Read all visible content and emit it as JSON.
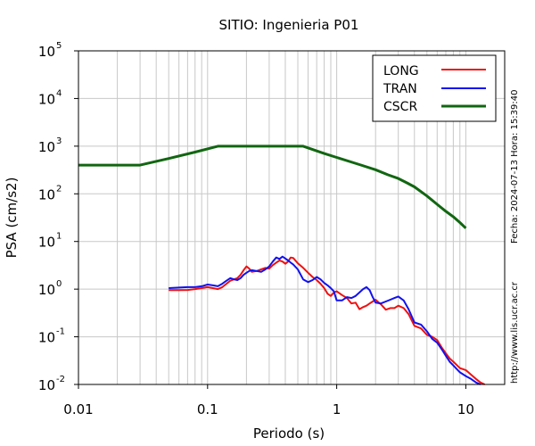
{
  "chart_data": {
    "type": "line",
    "title": "SITIO: Ingenieria P01",
    "xlabel": "Periodo (s)",
    "ylabel": "PSA (cm/s2)",
    "x_scale": "log",
    "y_scale": "log",
    "xlim": [
      0.01,
      20
    ],
    "ylim": [
      0.01,
      100000
    ],
    "grid": true,
    "legend_position": "top-right",
    "x_ticks": [
      {
        "value": 0.01,
        "label": "0.01"
      },
      {
        "value": 0.1,
        "label": "0.1"
      },
      {
        "value": 1,
        "label": "1"
      },
      {
        "value": 10,
        "label": "10"
      }
    ],
    "y_ticks": [
      {
        "value": 0.01,
        "base": "10",
        "exp": "-2"
      },
      {
        "value": 0.1,
        "base": "10",
        "exp": "-1"
      },
      {
        "value": 1,
        "base": "10",
        "exp": "0"
      },
      {
        "value": 10,
        "base": "10",
        "exp": "1"
      },
      {
        "value": 100,
        "base": "10",
        "exp": "2"
      },
      {
        "value": 1000,
        "base": "10",
        "exp": "3"
      },
      {
        "value": 10000,
        "base": "10",
        "exp": "4"
      },
      {
        "value": 100000,
        "base": "10",
        "exp": "5"
      }
    ],
    "series": [
      {
        "name": "LONG",
        "color": "#ee1111",
        "points": [
          [
            0.05,
            0.95
          ],
          [
            0.06,
            0.95
          ],
          [
            0.07,
            0.96
          ],
          [
            0.08,
            1.0
          ],
          [
            0.09,
            1.05
          ],
          [
            0.1,
            1.1
          ],
          [
            0.11,
            1.05
          ],
          [
            0.12,
            1.0
          ],
          [
            0.13,
            1.1
          ],
          [
            0.14,
            1.3
          ],
          [
            0.15,
            1.5
          ],
          [
            0.16,
            1.6
          ],
          [
            0.17,
            1.7
          ],
          [
            0.18,
            2.0
          ],
          [
            0.19,
            2.5
          ],
          [
            0.2,
            3.0
          ],
          [
            0.21,
            2.7
          ],
          [
            0.22,
            2.3
          ],
          [
            0.24,
            2.4
          ],
          [
            0.26,
            2.6
          ],
          [
            0.28,
            2.8
          ],
          [
            0.3,
            2.7
          ],
          [
            0.32,
            3.2
          ],
          [
            0.34,
            3.6
          ],
          [
            0.36,
            4.0
          ],
          [
            0.38,
            3.8
          ],
          [
            0.4,
            3.4
          ],
          [
            0.42,
            3.8
          ],
          [
            0.44,
            4.6
          ],
          [
            0.46,
            4.5
          ],
          [
            0.5,
            3.5
          ],
          [
            0.55,
            2.8
          ],
          [
            0.6,
            2.2
          ],
          [
            0.65,
            1.8
          ],
          [
            0.7,
            1.55
          ],
          [
            0.75,
            1.3
          ],
          [
            0.8,
            1.05
          ],
          [
            0.85,
            0.8
          ],
          [
            0.9,
            0.72
          ],
          [
            0.95,
            0.85
          ],
          [
            1.0,
            0.9
          ],
          [
            1.1,
            0.75
          ],
          [
            1.2,
            0.65
          ],
          [
            1.3,
            0.5
          ],
          [
            1.4,
            0.52
          ],
          [
            1.5,
            0.38
          ],
          [
            1.6,
            0.42
          ],
          [
            1.7,
            0.45
          ],
          [
            1.8,
            0.5
          ],
          [
            1.9,
            0.55
          ],
          [
            2.0,
            0.6
          ],
          [
            2.2,
            0.48
          ],
          [
            2.4,
            0.37
          ],
          [
            2.6,
            0.4
          ],
          [
            2.8,
            0.4
          ],
          [
            3.0,
            0.45
          ],
          [
            3.3,
            0.4
          ],
          [
            3.6,
            0.3
          ],
          [
            4.0,
            0.17
          ],
          [
            4.5,
            0.15
          ],
          [
            5.0,
            0.11
          ],
          [
            5.5,
            0.1
          ],
          [
            6.0,
            0.085
          ],
          [
            6.5,
            0.06
          ],
          [
            7.0,
            0.045
          ],
          [
            7.5,
            0.035
          ],
          [
            8.0,
            0.03
          ],
          [
            9.0,
            0.022
          ],
          [
            10.0,
            0.02
          ],
          [
            11.0,
            0.016
          ],
          [
            12.0,
            0.013
          ],
          [
            13.0,
            0.011
          ],
          [
            14.0,
            0.01
          ]
        ]
      },
      {
        "name": "TRAN",
        "color": "#1111ee",
        "points": [
          [
            0.05,
            1.05
          ],
          [
            0.06,
            1.08
          ],
          [
            0.07,
            1.1
          ],
          [
            0.08,
            1.1
          ],
          [
            0.09,
            1.15
          ],
          [
            0.1,
            1.25
          ],
          [
            0.11,
            1.2
          ],
          [
            0.12,
            1.15
          ],
          [
            0.13,
            1.3
          ],
          [
            0.14,
            1.5
          ],
          [
            0.15,
            1.7
          ],
          [
            0.16,
            1.6
          ],
          [
            0.17,
            1.55
          ],
          [
            0.18,
            1.7
          ],
          [
            0.19,
            2.0
          ],
          [
            0.2,
            2.2
          ],
          [
            0.21,
            2.4
          ],
          [
            0.22,
            2.5
          ],
          [
            0.24,
            2.4
          ],
          [
            0.26,
            2.3
          ],
          [
            0.28,
            2.6
          ],
          [
            0.3,
            3.0
          ],
          [
            0.32,
            3.8
          ],
          [
            0.34,
            4.6
          ],
          [
            0.36,
            4.3
          ],
          [
            0.38,
            4.8
          ],
          [
            0.4,
            4.4
          ],
          [
            0.42,
            4.0
          ],
          [
            0.44,
            3.6
          ],
          [
            0.46,
            3.3
          ],
          [
            0.5,
            2.6
          ],
          [
            0.55,
            1.6
          ],
          [
            0.6,
            1.4
          ],
          [
            0.65,
            1.55
          ],
          [
            0.7,
            1.8
          ],
          [
            0.75,
            1.6
          ],
          [
            0.8,
            1.35
          ],
          [
            0.85,
            1.2
          ],
          [
            0.9,
            1.05
          ],
          [
            0.95,
            0.9
          ],
          [
            1.0,
            0.58
          ],
          [
            1.1,
            0.58
          ],
          [
            1.2,
            0.68
          ],
          [
            1.3,
            0.65
          ],
          [
            1.4,
            0.72
          ],
          [
            1.5,
            0.85
          ],
          [
            1.6,
            1.0
          ],
          [
            1.7,
            1.1
          ],
          [
            1.8,
            0.95
          ],
          [
            1.9,
            0.68
          ],
          [
            2.0,
            0.52
          ],
          [
            2.2,
            0.5
          ],
          [
            2.4,
            0.55
          ],
          [
            2.6,
            0.6
          ],
          [
            2.8,
            0.65
          ],
          [
            3.0,
            0.7
          ],
          [
            3.3,
            0.58
          ],
          [
            3.6,
            0.38
          ],
          [
            4.0,
            0.2
          ],
          [
            4.5,
            0.18
          ],
          [
            5.0,
            0.13
          ],
          [
            5.5,
            0.09
          ],
          [
            6.0,
            0.075
          ],
          [
            6.5,
            0.055
          ],
          [
            7.0,
            0.04
          ],
          [
            7.5,
            0.03
          ],
          [
            8.0,
            0.025
          ],
          [
            9.0,
            0.018
          ],
          [
            10.0,
            0.015
          ],
          [
            11.0,
            0.013
          ],
          [
            12.0,
            0.011
          ],
          [
            13.0,
            0.01
          ]
        ]
      },
      {
        "name": "CSCR",
        "color": "#116611",
        "points": [
          [
            0.01,
            400
          ],
          [
            0.03,
            400
          ],
          [
            0.05,
            550
          ],
          [
            0.08,
            750
          ],
          [
            0.12,
            1000
          ],
          [
            0.2,
            1000
          ],
          [
            0.3,
            1000
          ],
          [
            0.4,
            1000
          ],
          [
            0.55,
            1000
          ],
          [
            0.8,
            700
          ],
          [
            1.0,
            580
          ],
          [
            1.5,
            410
          ],
          [
            2.0,
            320
          ],
          [
            2.5,
            250
          ],
          [
            3.0,
            210
          ],
          [
            3.5,
            170
          ],
          [
            4.0,
            140
          ],
          [
            5.0,
            90
          ],
          [
            6.0,
            60
          ],
          [
            7.0,
            43
          ],
          [
            8.0,
            33
          ],
          [
            9.0,
            25
          ],
          [
            10.0,
            19
          ]
        ]
      }
    ]
  },
  "side_text": {
    "timestamp": "Fecha: 2024-07-13 Hora: 15:39:40",
    "url": "http://www.lis.ucr.ac.cr"
  }
}
